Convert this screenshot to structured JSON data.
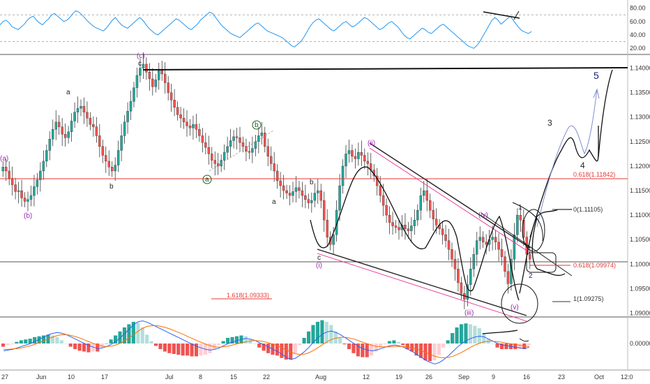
{
  "colors": {
    "up": "#26a69a",
    "down": "#ef5350",
    "rsi": "#2196f3",
    "macd": "#2962ff",
    "signal": "#ff6d00",
    "wave_purple": "#9c27b0",
    "wave_dark": "#1a237e",
    "wave_green": "#1b5e20",
    "fib_red": "#e53935",
    "projection": "#7e8ec9"
  },
  "rsi_panel": {
    "ticks": [
      "80.00",
      "60.00",
      "40.00",
      "20.00"
    ],
    "levels": [
      70,
      30
    ]
  },
  "price_panel": {
    "ticks": [
      "1.14000",
      "1.13500",
      "1.13000",
      "1.12500",
      "1.12000",
      "1.11500",
      "1.11000",
      "1.10500",
      "1.10000",
      "1.09500",
      "1.09000"
    ],
    "top_line_price": 1.1408,
    "current_line_price": 1.101,
    "red_level_price": 1.1185
  },
  "macd_panel": {
    "ticks": [
      "0.00000"
    ]
  },
  "time_axis": {
    "labels": [
      "27",
      "Jun",
      "10",
      "17",
      "Jul",
      "8",
      "15",
      "22",
      "Aug",
      "12",
      "19",
      "26",
      "Sep",
      "9",
      "16",
      "23",
      "Oct",
      "12:0"
    ]
  },
  "fib_labels": {
    "f1": "0.618(1.11842)",
    "f2": "0(1.11105)",
    "f3": "0.618(1.09974)",
    "f4": "1(1.09275)",
    "f5": "1.618(1.09333)"
  },
  "wave_labels": {
    "a_paren": "(a)",
    "b_paren": "(b)",
    "c_paren": "(c)",
    "a1": "a",
    "c1": "c",
    "b1": "b",
    "a_circ": "a",
    "b_circ": "b",
    "a2": "a",
    "b2": "b",
    "c2": "c",
    "i": "(i)",
    "ii": "(ii)",
    "iii": "(iii)",
    "iv": "(iv)",
    "v": "(v)",
    "n1": "1",
    "n2": "2",
    "n3": "3",
    "n4": "4",
    "n5": "5"
  },
  "chart_data": [
    {
      "panel": "rsi",
      "type": "line",
      "yticks": [
        80,
        60,
        40,
        20
      ],
      "ylim": [
        15,
        88
      ],
      "overbought": 70,
      "oversold": 30,
      "values": [
        55,
        60,
        62,
        58,
        52,
        50,
        48,
        52,
        56,
        62,
        66,
        68,
        62,
        58,
        55,
        60,
        64,
        70,
        72,
        68,
        64,
        60,
        62,
        66,
        72,
        76,
        74,
        70,
        65,
        60,
        56,
        52,
        50,
        48,
        46,
        50,
        56,
        62,
        66,
        60,
        55,
        52,
        50,
        54,
        58,
        62,
        66,
        62,
        56,
        50,
        46,
        42,
        40,
        44,
        48,
        52,
        56,
        60,
        64,
        62,
        58,
        54,
        50,
        48,
        52,
        56,
        62,
        66,
        70,
        74,
        72,
        66,
        60,
        54,
        50,
        46,
        42,
        40,
        38,
        36,
        40,
        44,
        48,
        52,
        56,
        58,
        54,
        50,
        46,
        44,
        42,
        40,
        38,
        36,
        32,
        28,
        24,
        22,
        26,
        30,
        36,
        44,
        52,
        58,
        62,
        64,
        60,
        56,
        52,
        48,
        46,
        50,
        54,
        58,
        60,
        56,
        52,
        54,
        58,
        62,
        66,
        64,
        60,
        56,
        52,
        48,
        50,
        54,
        58,
        60,
        56,
        52,
        46,
        40,
        36,
        34,
        38,
        42,
        46,
        50,
        48,
        44,
        42,
        46,
        50,
        54,
        56,
        52,
        48,
        44,
        40,
        36,
        32,
        28,
        24,
        22,
        20,
        24,
        30,
        38,
        46,
        54,
        62,
        66,
        62,
        56,
        60,
        64,
        68,
        62,
        56,
        50,
        46,
        44,
        42,
        45
      ]
    },
    {
      "panel": "price",
      "type": "candlestick",
      "series": "EURUSD daily",
      "ylim": [
        1.0895,
        1.1425
      ],
      "closes": [
        1.1198,
        1.119,
        1.1175,
        1.1162,
        1.1148,
        1.115,
        1.1135,
        1.1128,
        1.1132,
        1.114,
        1.1158,
        1.1172,
        1.119,
        1.121,
        1.1232,
        1.1255,
        1.1275,
        1.129,
        1.128,
        1.1265,
        1.1258,
        1.127,
        1.1292,
        1.131,
        1.1318,
        1.1322,
        1.131,
        1.1298,
        1.1285,
        1.128,
        1.1262,
        1.124,
        1.1222,
        1.121,
        1.1198,
        1.119,
        1.1202,
        1.1232,
        1.1262,
        1.129,
        1.1312,
        1.1332,
        1.136,
        1.1385,
        1.14,
        1.1408,
        1.1392,
        1.1378,
        1.1362,
        1.1376,
        1.1395,
        1.1388,
        1.137,
        1.135,
        1.1335,
        1.132,
        1.1305,
        1.1298,
        1.129,
        1.1282,
        1.1278,
        1.1285,
        1.1275,
        1.1262,
        1.1248,
        1.1238,
        1.1225,
        1.1212,
        1.1205,
        1.12,
        1.1212,
        1.1228,
        1.124,
        1.1252,
        1.126,
        1.1258,
        1.1248,
        1.124,
        1.123,
        1.1228,
        1.1236,
        1.125,
        1.1262,
        1.1268,
        1.124,
        1.122,
        1.1205,
        1.119,
        1.117,
        1.116,
        1.115,
        1.1145,
        1.114,
        1.1148,
        1.1156,
        1.115,
        1.114,
        1.1132,
        1.1125,
        1.113,
        1.1145,
        1.115,
        1.113,
        1.109,
        1.1055,
        1.104,
        1.106,
        1.111,
        1.116,
        1.12,
        1.1225,
        1.1232,
        1.122,
        1.1215,
        1.1228,
        1.1222,
        1.121,
        1.1205,
        1.1192,
        1.118,
        1.116,
        1.114,
        1.112,
        1.11,
        1.1085,
        1.1078,
        1.1075,
        1.107,
        1.108,
        1.1072,
        1.1068,
        1.1078,
        1.109,
        1.111,
        1.114,
        1.115,
        1.113,
        1.111,
        1.1092,
        1.108,
        1.1072,
        1.106,
        1.1048,
        1.103,
        1.101,
        1.099,
        1.0962,
        1.094,
        1.0928,
        1.0958,
        1.099,
        1.102,
        1.1048,
        1.1055,
        1.1045,
        1.104,
        1.105,
        1.1055,
        1.1045,
        1.103,
        1.1015,
        1.0985,
        1.096,
        1.101,
        1.106,
        1.11,
        1.109,
        1.1055,
        1.102,
        1.101
      ]
    },
    {
      "panel": "macd",
      "type": "line",
      "yticks": [
        0
      ],
      "series": [
        {
          "values": [
            -0.002,
            -0.0018,
            -0.0016,
            -0.0012,
            -0.0008,
            -0.0004,
            0.0,
            0.0006,
            0.0012,
            0.0018,
            0.0024,
            0.0028,
            0.003,
            0.0028,
            0.0024,
            0.0018,
            0.0012,
            0.0006,
            0.0,
            -0.0006,
            -0.001,
            -0.0014,
            -0.0012,
            -0.0008,
            -0.0002,
            0.0006,
            0.0016,
            0.0028,
            0.004,
            0.0052,
            0.006,
            0.0062,
            0.0058,
            0.0052,
            0.0046,
            0.004,
            0.0034,
            0.0028,
            0.0022,
            0.0016,
            0.001,
            0.0004,
            -0.0002,
            -0.0008,
            -0.0012,
            -0.0016,
            -0.0018,
            -0.0016,
            -0.0012,
            -0.0006,
            0.0,
            0.0004,
            0.0008,
            0.0012,
            0.0014,
            0.0012,
            0.0008,
            0.0002,
            -0.0004,
            -0.001,
            -0.0016,
            -0.0022,
            -0.003,
            -0.0038,
            -0.0044,
            -0.004,
            -0.0032,
            -0.0022,
            -0.001,
            0.0004,
            0.0016,
            0.0026,
            0.0032,
            0.0034,
            0.003,
            0.0024,
            0.0016,
            0.0008,
            0.0,
            -0.0008,
            -0.0014,
            -0.0018,
            -0.002,
            -0.0018,
            -0.0014,
            -0.001,
            -0.0006,
            -0.0004,
            -0.0006,
            -0.001,
            -0.0016,
            -0.0022,
            -0.003,
            -0.0038,
            -0.0046,
            -0.0052,
            -0.0056,
            -0.0052,
            -0.0044,
            -0.0034,
            -0.0022,
            -0.001,
            0.0,
            0.0008,
            0.0014,
            0.0018,
            0.002,
            0.0018,
            0.0012,
            0.0006,
            0.0,
            -0.0004,
            -0.0006,
            -0.0008,
            -0.001,
            -0.0012,
            -0.0014,
            -0.001
          ]
        },
        {
          "values": [
            -0.0016,
            -0.0016,
            -0.0015,
            -0.0014,
            -0.0012,
            -0.0009,
            -0.0006,
            -0.0002,
            0.0003,
            0.0008,
            0.0013,
            0.0018,
            0.0022,
            0.0024,
            0.0024,
            0.0022,
            0.0019,
            0.0015,
            0.001,
            0.0005,
            0.0,
            -0.0004,
            -0.0007,
            -0.0008,
            -0.0007,
            -0.0004,
            0.0001,
            0.0008,
            0.0016,
            0.0025,
            0.0034,
            0.0042,
            0.0047,
            0.0049,
            0.0049,
            0.0047,
            0.0044,
            0.004,
            0.0035,
            0.003,
            0.0025,
            0.0019,
            0.0014,
            0.0008,
            0.0003,
            -0.0002,
            -0.0006,
            -0.0009,
            -0.001,
            -0.0009,
            -0.0007,
            -0.0004,
            -0.0001,
            0.0002,
            0.0005,
            0.0007,
            0.0008,
            0.0007,
            0.0005,
            0.0002,
            -0.0002,
            -0.0007,
            -0.0012,
            -0.0018,
            -0.0024,
            -0.0028,
            -0.003,
            -0.0029,
            -0.0025,
            -0.0019,
            -0.0011,
            -0.0003,
            0.0005,
            0.0011,
            0.0015,
            0.0017,
            0.0017,
            0.0015,
            0.0012,
            0.0008,
            0.0003,
            -0.0001,
            -0.0005,
            -0.0008,
            -0.0009,
            -0.0009,
            -0.0009,
            -0.0008,
            -0.0008,
            -0.0008,
            -0.0009,
            -0.0012,
            -0.0015,
            -0.002,
            -0.0025,
            -0.003,
            -0.0035,
            -0.0038,
            -0.0039,
            -0.0038,
            -0.0035,
            -0.003,
            -0.0024,
            -0.0017,
            -0.001,
            -0.0004,
            0.0001,
            0.0005,
            0.0006,
            0.0006,
            0.0005,
            0.0003,
            0.0001,
            -0.0001,
            -0.0003,
            -0.0005,
            -0.0007,
            -0.0008
          ]
        }
      ]
    }
  ]
}
